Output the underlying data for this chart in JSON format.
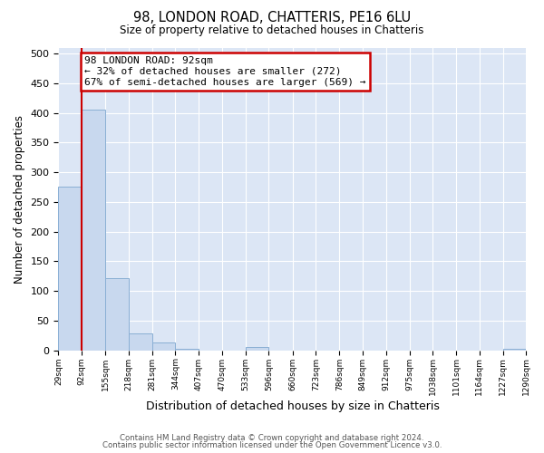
{
  "title": "98, LONDON ROAD, CHATTERIS, PE16 6LU",
  "subtitle": "Size of property relative to detached houses in Chatteris",
  "xlabel": "Distribution of detached houses by size in Chatteris",
  "ylabel": "Number of detached properties",
  "bin_edges": [
    29,
    92,
    155,
    218,
    281,
    344,
    407,
    470,
    533,
    596,
    660,
    723,
    786,
    849,
    912,
    975,
    1038,
    1101,
    1164,
    1227,
    1290
  ],
  "bin_heights": [
    275,
    405,
    122,
    28,
    14,
    3,
    0,
    0,
    5,
    0,
    0,
    0,
    0,
    0,
    0,
    0,
    0,
    0,
    0,
    3
  ],
  "bar_color": "#c8d8ee",
  "bar_edge_color": "#8aafd4",
  "property_size": 92,
  "property_label": "98 LONDON ROAD: 92sqm",
  "annotation_line1": "← 32% of detached houses are smaller (272)",
  "annotation_line2": "67% of semi-detached houses are larger (569) →",
  "vline_color": "#cc0000",
  "annotation_box_edge_color": "#cc0000",
  "ylim": [
    0,
    510
  ],
  "yticks": [
    0,
    50,
    100,
    150,
    200,
    250,
    300,
    350,
    400,
    450,
    500
  ],
  "footer1": "Contains HM Land Registry data © Crown copyright and database right 2024.",
  "footer2": "Contains public sector information licensed under the Open Government Licence v3.0.",
  "background_color": "#ffffff",
  "plot_bg_color": "#dce6f5",
  "grid_color": "#ffffff"
}
